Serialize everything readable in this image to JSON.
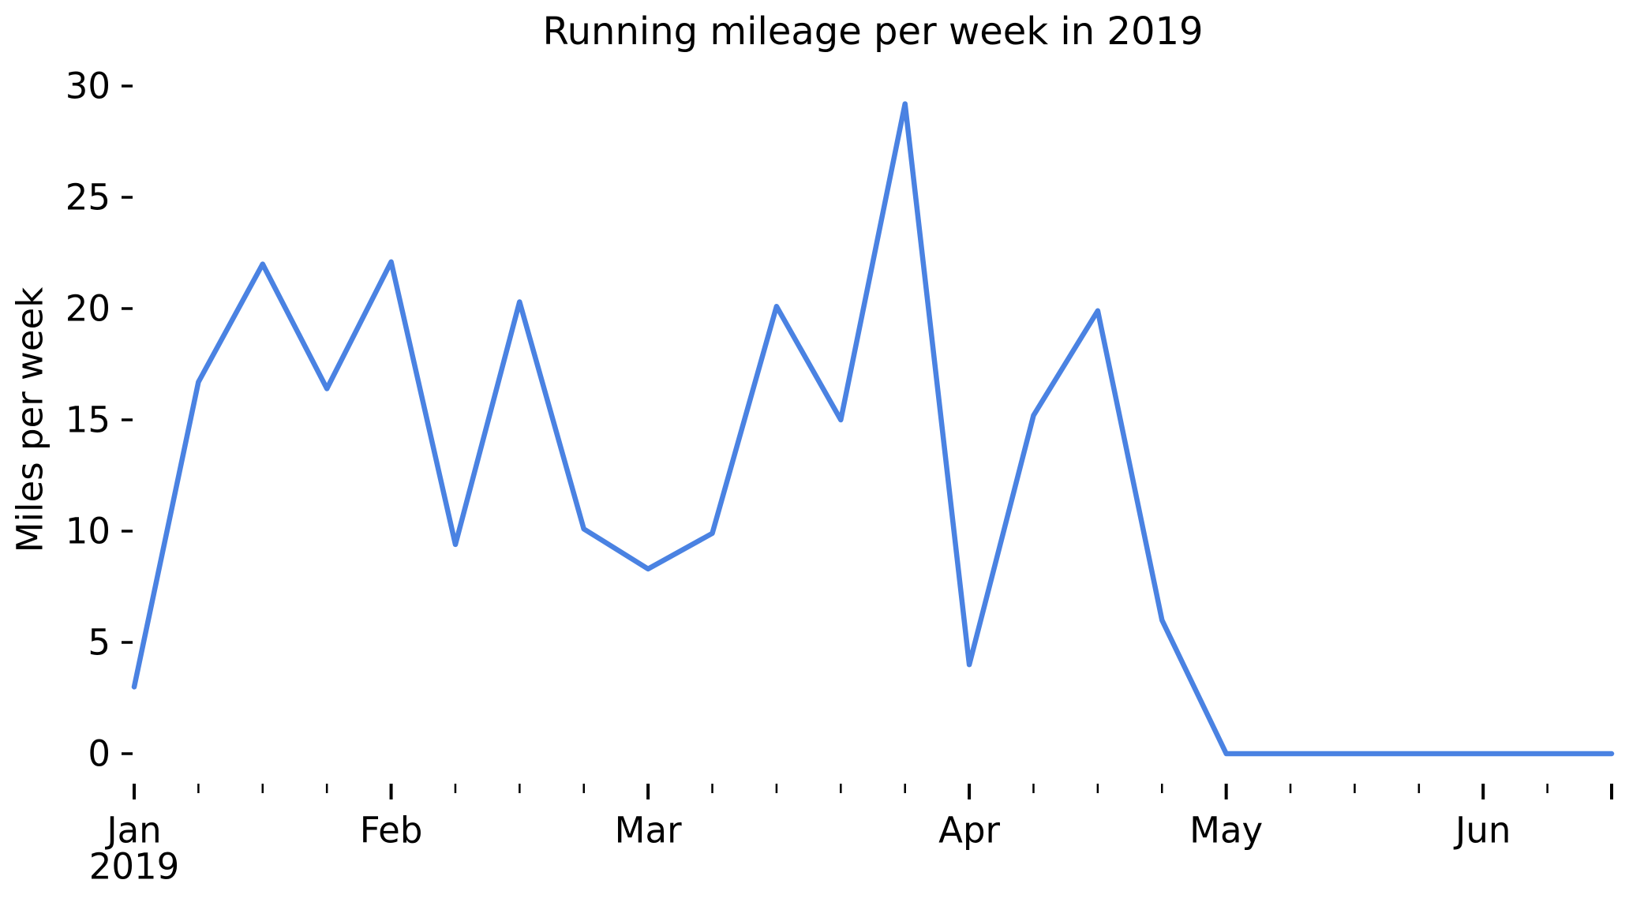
{
  "title": "Running mileage per week in 2019",
  "colors": {
    "line": "#4a82e2",
    "text": "#000000",
    "tick": "#000000",
    "background": "#ffffff"
  },
  "chart_data": {
    "type": "line",
    "title": "Running mileage per week in 2019",
    "xlabel": "",
    "ylabel": "Miles per week",
    "x_unit": "week",
    "x_index": [
      0,
      1,
      2,
      3,
      4,
      5,
      6,
      7,
      8,
      9,
      10,
      11,
      12,
      13,
      14,
      15,
      16,
      17,
      18,
      19,
      20,
      21,
      22,
      23
    ],
    "values": [
      3.0,
      16.7,
      22.0,
      16.4,
      22.1,
      9.4,
      20.3,
      10.1,
      8.3,
      9.9,
      20.1,
      15.0,
      29.2,
      4.0,
      15.2,
      19.9,
      6.0,
      0,
      0,
      0,
      0,
      0,
      0,
      0
    ],
    "y_ticks": [
      0,
      5,
      10,
      15,
      20,
      25,
      30
    ],
    "ylim": [
      -1.5,
      30.7
    ],
    "x_major_ticks": [
      {
        "i": 0,
        "label": "Jan",
        "sublabel": "2019"
      },
      {
        "i": 4,
        "label": "Feb",
        "sublabel": ""
      },
      {
        "i": 8,
        "label": "Mar",
        "sublabel": ""
      },
      {
        "i": 13,
        "label": "Apr",
        "sublabel": ""
      },
      {
        "i": 17,
        "label": "May",
        "sublabel": ""
      },
      {
        "i": 21,
        "label": "Jun",
        "sublabel": ""
      },
      {
        "i": 23,
        "label": "",
        "sublabel": ""
      }
    ],
    "x_minor_tick_indices": [
      1,
      2,
      3,
      5,
      6,
      7,
      9,
      10,
      11,
      12,
      14,
      15,
      16,
      18,
      19,
      20,
      22
    ],
    "grid": false,
    "legend": false
  }
}
